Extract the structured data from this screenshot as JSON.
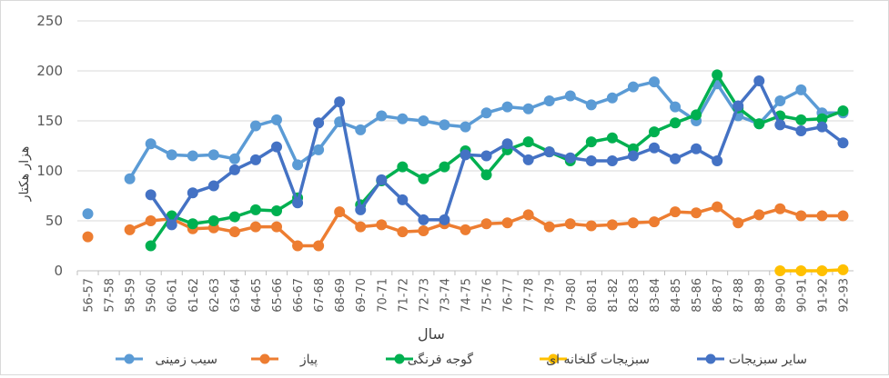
{
  "chart_data": {
    "type": "line",
    "title": "",
    "xlabel": "سال",
    "ylabel": "هزار هکتار",
    "ylim": [
      0,
      250
    ],
    "yticks": [
      0,
      50,
      100,
      150,
      200,
      250
    ],
    "grid": "horizontal",
    "legend_position": "bottom",
    "categories": [
      "56-57",
      "57-58",
      "58-59",
      "59-60",
      "60-61",
      "61-62",
      "62-63",
      "63-64",
      "64-65",
      "65-66",
      "66-67",
      "67-68",
      "68-69",
      "69-70",
      "70-71",
      "71-72",
      "72-73",
      "73-74",
      "74-75",
      "75-76",
      "76-77",
      "77-78",
      "78-79",
      "79-80",
      "80-81",
      "81-82",
      "82-83",
      "83-84",
      "84-85",
      "85-86",
      "86-87",
      "87-88",
      "88-89",
      "89-90",
      "90-91",
      "91-92",
      "92-93"
    ],
    "series": [
      {
        "name": "سیب زمینی",
        "color": "#5B9BD5",
        "values": [
          57,
          null,
          92,
          127,
          116,
          115,
          116,
          112,
          145,
          151,
          106,
          121,
          149,
          141,
          155,
          152,
          150,
          146,
          144,
          158,
          164,
          162,
          170,
          175,
          166,
          173,
          184,
          189,
          164,
          150,
          187,
          155,
          147,
          170,
          181,
          158,
          158
        ]
      },
      {
        "name": "پیاز",
        "color": "#ED7D31",
        "values": [
          34,
          null,
          41,
          50,
          52,
          42,
          43,
          39,
          44,
          44,
          25,
          25,
          59,
          44,
          46,
          39,
          40,
          47,
          41,
          47,
          48,
          56,
          44,
          47,
          45,
          46,
          48,
          49,
          59,
          58,
          64,
          48,
          56,
          62,
          55,
          55,
          55
        ]
      },
      {
        "name": "گوجه فرنگی",
        "color": "#00B050",
        "values": [
          null,
          null,
          null,
          25,
          55,
          47,
          50,
          54,
          61,
          60,
          73,
          null,
          null,
          66,
          90,
          104,
          92,
          104,
          120,
          96,
          121,
          129,
          119,
          110,
          129,
          133,
          122,
          139,
          148,
          156,
          196,
          163,
          147,
          155,
          151,
          152,
          160
        ]
      },
      {
        "name": "سبزیجات گلخانه ای",
        "color": "#FFC000",
        "values": [
          null,
          null,
          null,
          null,
          null,
          null,
          null,
          null,
          null,
          null,
          null,
          null,
          null,
          null,
          null,
          null,
          null,
          null,
          null,
          null,
          null,
          null,
          null,
          null,
          null,
          null,
          null,
          null,
          null,
          null,
          null,
          null,
          null,
          0,
          0,
          0,
          1
        ]
      },
      {
        "name": "سایر سبزیجات",
        "color": "#4472C4",
        "values": [
          null,
          null,
          null,
          76,
          46,
          78,
          85,
          101,
          111,
          124,
          68,
          148,
          169,
          61,
          91,
          71,
          51,
          51,
          116,
          115,
          127,
          111,
          119,
          113,
          110,
          110,
          115,
          123,
          112,
          122,
          110,
          165,
          190,
          146,
          140,
          144,
          128
        ]
      }
    ]
  }
}
